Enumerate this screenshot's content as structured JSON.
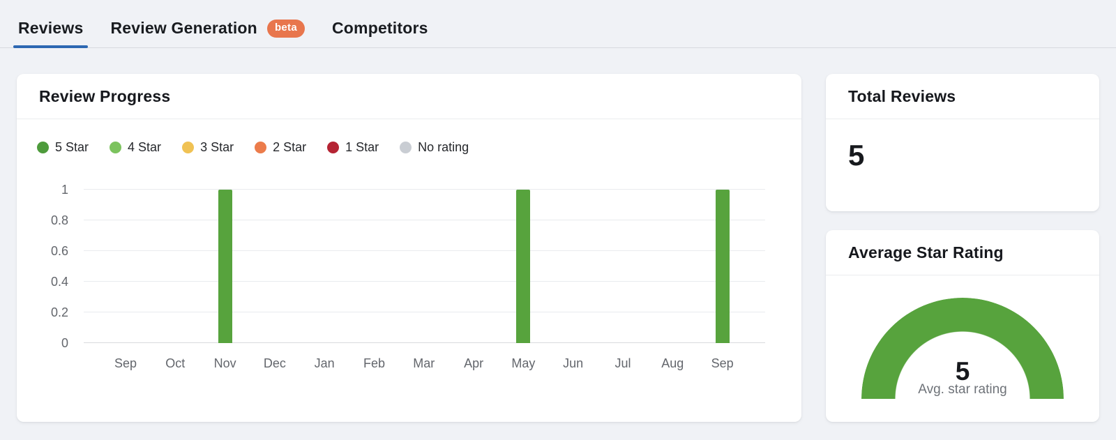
{
  "tabs": {
    "items": [
      {
        "label": "Reviews",
        "active": true,
        "badge": null
      },
      {
        "label": "Review Generation",
        "active": false,
        "badge": "beta"
      },
      {
        "label": "Competitors",
        "active": false,
        "badge": null
      }
    ],
    "active_underline_color": "#2d68b2",
    "badge_bg": "#e8764d"
  },
  "review_progress": {
    "title": "Review Progress",
    "legend": [
      {
        "label": "5 Star",
        "color": "#4e9b3c"
      },
      {
        "label": "4 Star",
        "color": "#7cc35e"
      },
      {
        "label": "3 Star",
        "color": "#f0c254"
      },
      {
        "label": "2 Star",
        "color": "#ec7c4b"
      },
      {
        "label": "1 Star",
        "color": "#b52433"
      },
      {
        "label": "No rating",
        "color": "#c9cdd3"
      }
    ]
  },
  "chart_data": {
    "type": "bar",
    "title": "Review Progress",
    "categories": [
      "Sep",
      "Oct",
      "Nov",
      "Dec",
      "Jan",
      "Feb",
      "Mar",
      "Apr",
      "May",
      "Jun",
      "Jul",
      "Aug",
      "Sep"
    ],
    "series": [
      {
        "name": "5 Star",
        "color": "#57a33d",
        "values": [
          0,
          0,
          1,
          0,
          0,
          0,
          0,
          0,
          1,
          0,
          0,
          0,
          1
        ]
      },
      {
        "name": "4 Star",
        "color": "#7cc35e",
        "values": [
          0,
          0,
          0,
          0,
          0,
          0,
          0,
          0,
          0,
          0,
          0,
          0,
          0
        ]
      },
      {
        "name": "3 Star",
        "color": "#f0c254",
        "values": [
          0,
          0,
          0,
          0,
          0,
          0,
          0,
          0,
          0,
          0,
          0,
          0,
          0
        ]
      },
      {
        "name": "2 Star",
        "color": "#ec7c4b",
        "values": [
          0,
          0,
          0,
          0,
          0,
          0,
          0,
          0,
          0,
          0,
          0,
          0,
          0
        ]
      },
      {
        "name": "1 Star",
        "color": "#b52433",
        "values": [
          0,
          0,
          0,
          0,
          0,
          0,
          0,
          0,
          0,
          0,
          0,
          0,
          0
        ]
      },
      {
        "name": "No rating",
        "color": "#c9cdd3",
        "values": [
          0,
          0,
          0,
          0,
          0,
          0,
          0,
          0,
          0,
          0,
          0,
          0,
          0
        ]
      }
    ],
    "ylim": [
      0,
      1
    ],
    "yticks": [
      0,
      0.2,
      0.4,
      0.6,
      0.8,
      1
    ],
    "grid": true,
    "legend_position": "top",
    "xlabel": "",
    "ylabel": ""
  },
  "total_reviews": {
    "title": "Total Reviews",
    "value": "5"
  },
  "average_star_rating": {
    "title": "Average Star Rating",
    "value": "5",
    "max": 5,
    "caption": "Avg. star rating",
    "gauge_color": "#57a33d"
  }
}
